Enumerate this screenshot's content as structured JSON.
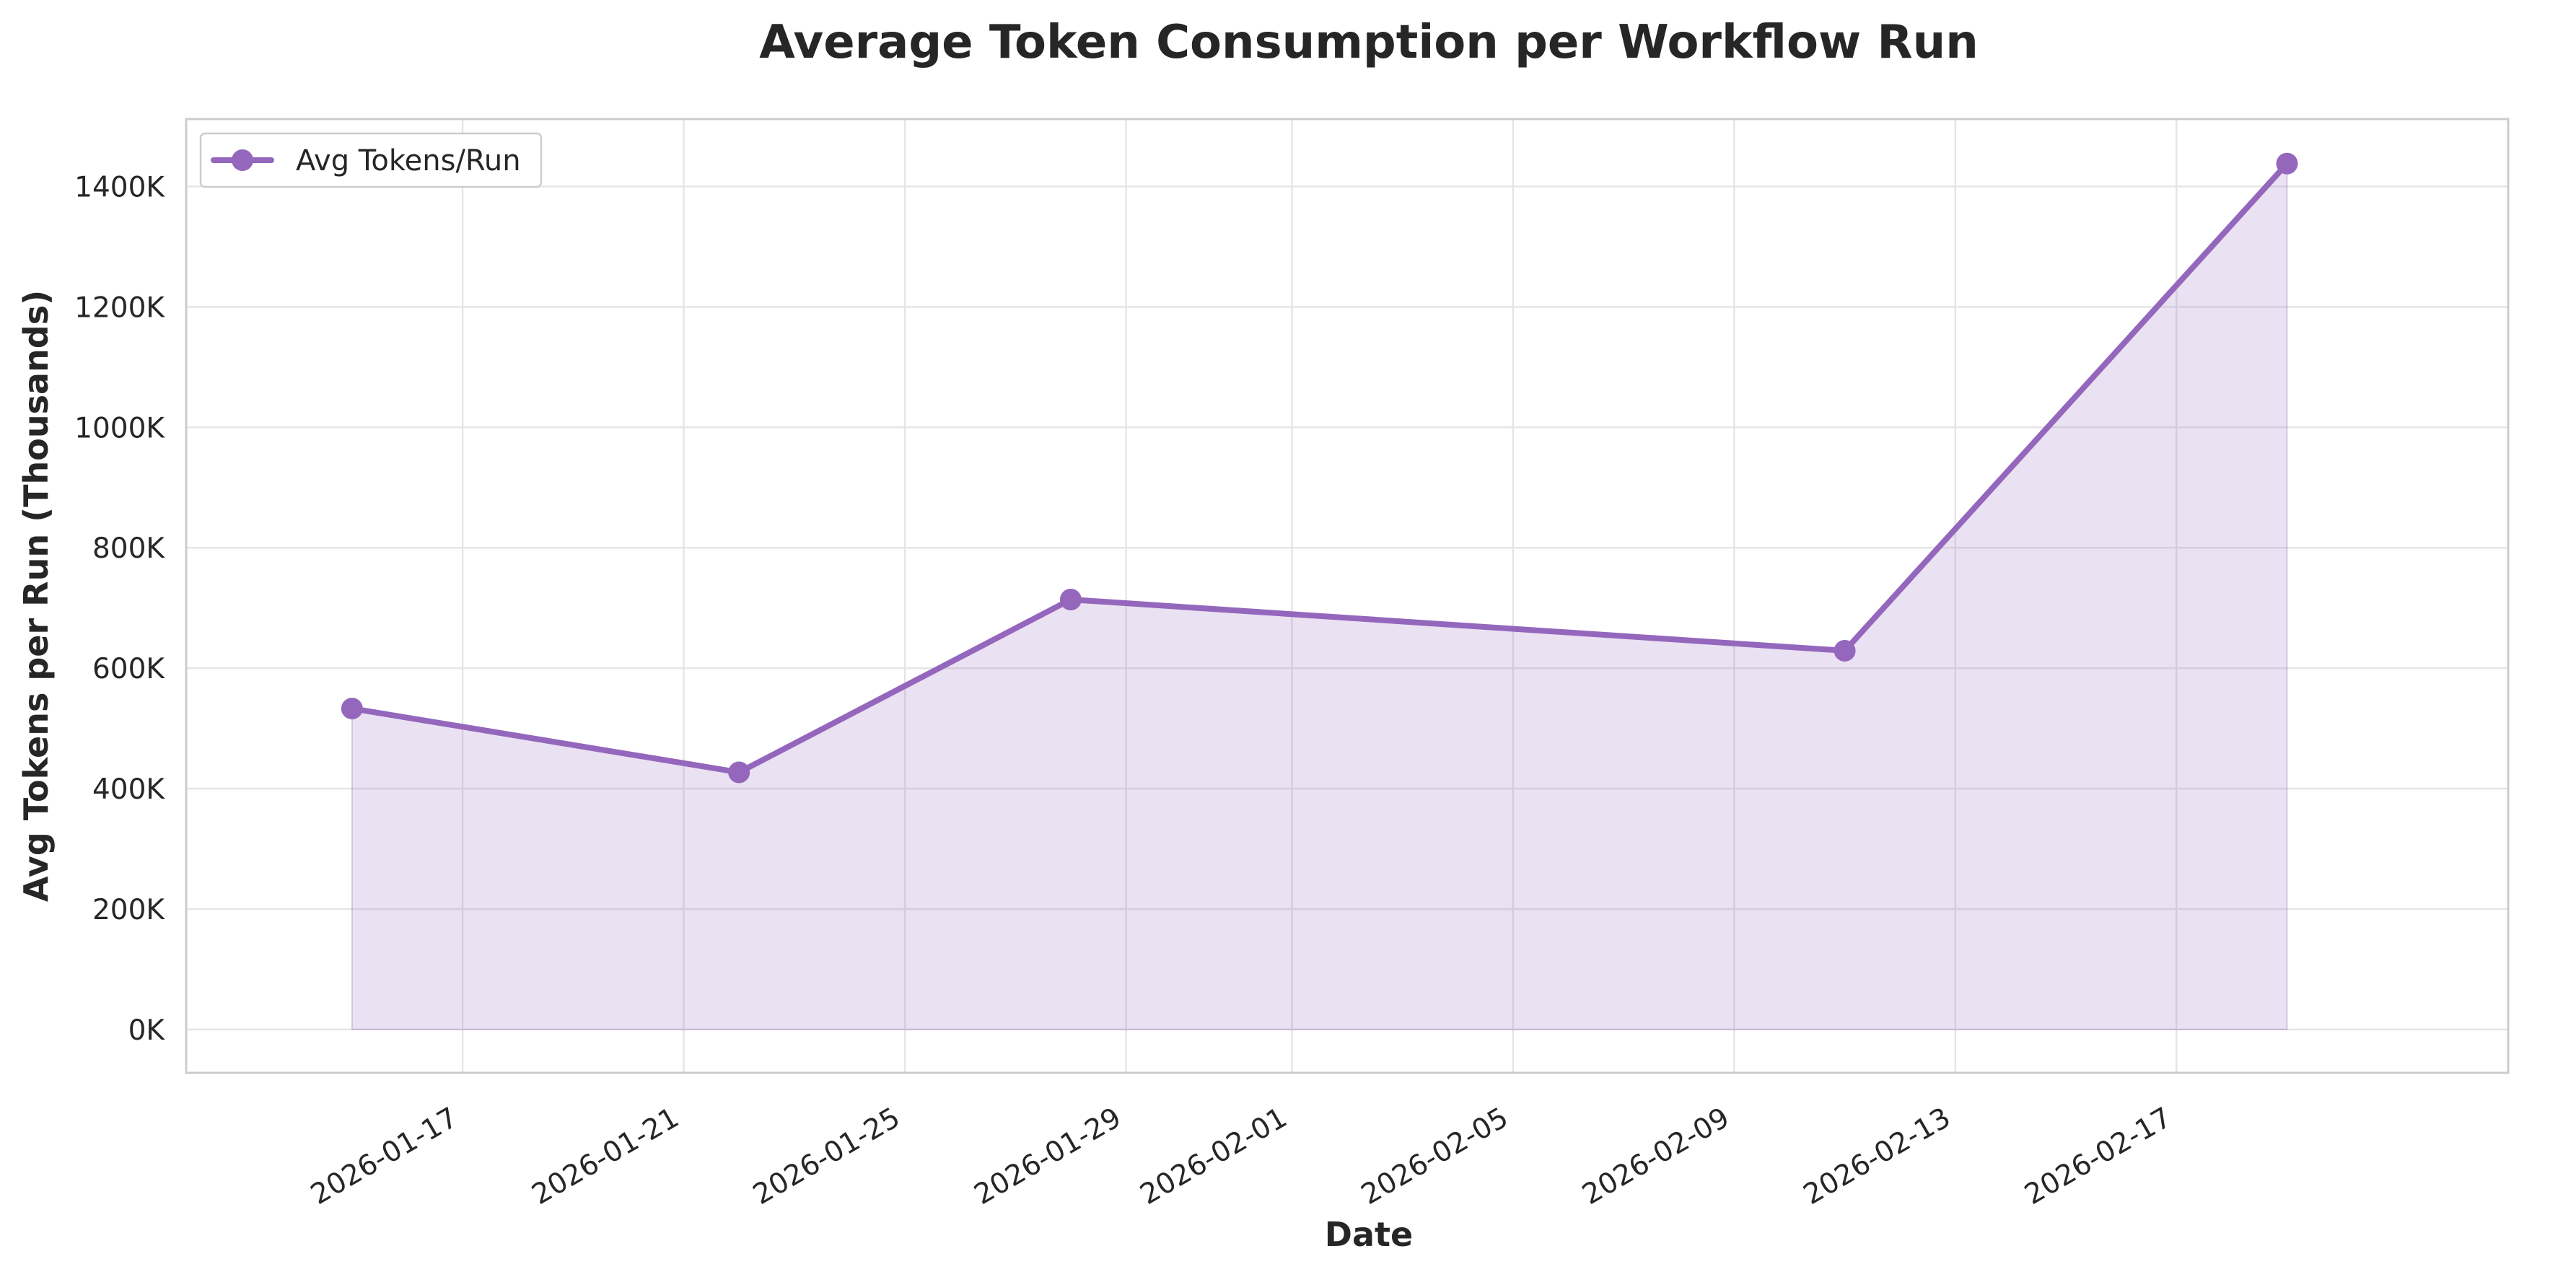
{
  "chart_data": {
    "type": "area",
    "title": "Average Token Consumption per Workflow Run",
    "xlabel": "Date",
    "ylabel": "Avg Tokens per Run (Thousands)",
    "x": [
      "2026-01-15",
      "2026-01-22",
      "2026-01-28",
      "2026-02-11",
      "2026-02-19"
    ],
    "series": [
      {
        "name": "Avg Tokens/Run",
        "values": [
          533,
          427,
          714,
          629,
          1438
        ],
        "color": "#9467bd"
      }
    ],
    "xticks": [
      "2026-01-17",
      "2026-01-21",
      "2026-01-25",
      "2026-01-29",
      "2026-02-01",
      "2026-02-05",
      "2026-02-09",
      "2026-02-13",
      "2026-02-17"
    ],
    "yticks": [
      0,
      200,
      400,
      600,
      800,
      1000,
      1200,
      1400
    ],
    "ytick_labels": [
      "0K",
      "200K",
      "400K",
      "600K",
      "800K",
      "1000K",
      "1200K",
      "1400K"
    ],
    "xlim": [
      "2026-01-12",
      "2026-02-23"
    ],
    "ylim": [
      -72,
      1512
    ],
    "grid": true,
    "legend": "upper-left",
    "fill_color": "#9467bd"
  }
}
